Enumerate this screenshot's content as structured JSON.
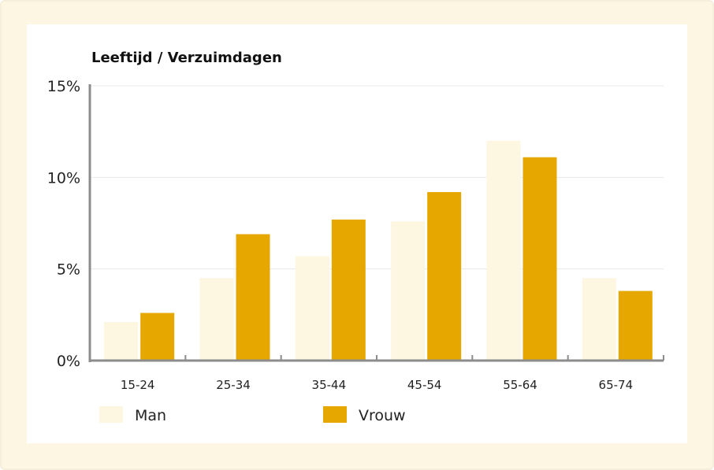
{
  "chart_data": {
    "type": "bar",
    "title": "Leeftijd / Verzuimdagen",
    "xlabel": "",
    "ylabel": "",
    "categories": [
      "15-24",
      "25-34",
      "35-44",
      "45-54",
      "55-64",
      "65-74"
    ],
    "series": [
      {
        "name": "Man",
        "color": "#fdf6e1",
        "values": [
          2.1,
          4.5,
          5.7,
          7.6,
          12.0,
          4.5
        ]
      },
      {
        "name": "Vrouw",
        "color": "#e6a800",
        "values": [
          2.6,
          6.9,
          7.7,
          9.2,
          11.1,
          3.8
        ]
      }
    ],
    "ylim": [
      0,
      15
    ],
    "yticks": [
      0,
      5,
      10,
      15
    ],
    "ytick_labels": [
      "0%",
      "5%",
      "10%",
      "15%"
    ],
    "grid": true,
    "legend_position": "bottom-left"
  },
  "colors": {
    "frame_background": "#fdf6e3",
    "axis": "#8c8c8c",
    "grid": "#e8e8e8"
  }
}
